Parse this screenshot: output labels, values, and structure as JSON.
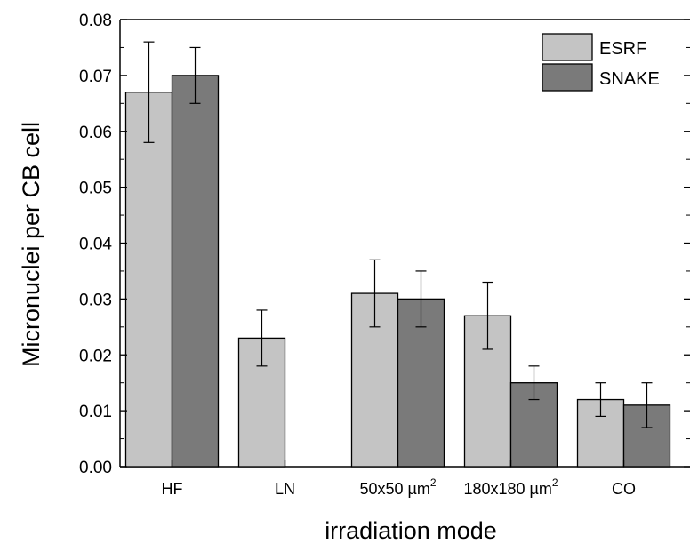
{
  "chart_data": {
    "type": "bar",
    "xlabel": "irradiation mode",
    "ylabel": "Micronuclei per CB cell",
    "ylim": [
      0,
      0.08
    ],
    "yticks": [
      "0.00",
      "0.01",
      "0.02",
      "0.03",
      "0.04",
      "0.05",
      "0.06",
      "0.07",
      "0.08"
    ],
    "categories": [
      {
        "base": "HF",
        "sup": ""
      },
      {
        "base": "LN",
        "sup": ""
      },
      {
        "base": "50x50 µm",
        "sup": "2"
      },
      {
        "base": "180x180 µm",
        "sup": "2"
      },
      {
        "base": "CO",
        "sup": ""
      }
    ],
    "series": [
      {
        "name": "ESRF",
        "color": "#c4c4c4",
        "values": [
          0.067,
          0.023,
          0.031,
          0.027,
          0.012
        ],
        "err_low": [
          0.058,
          0.018,
          0.025,
          0.021,
          0.009
        ],
        "err_high": [
          0.076,
          0.028,
          0.037,
          0.033,
          0.015
        ]
      },
      {
        "name": "SNAKE",
        "color": "#7a7a7a",
        "values": [
          0.07,
          null,
          0.03,
          0.015,
          0.011
        ],
        "err_low": [
          0.065,
          null,
          0.025,
          0.012,
          0.007
        ],
        "err_high": [
          0.075,
          null,
          0.035,
          0.018,
          0.015
        ]
      }
    ],
    "legend_position": "top-right",
    "grid": false
  }
}
